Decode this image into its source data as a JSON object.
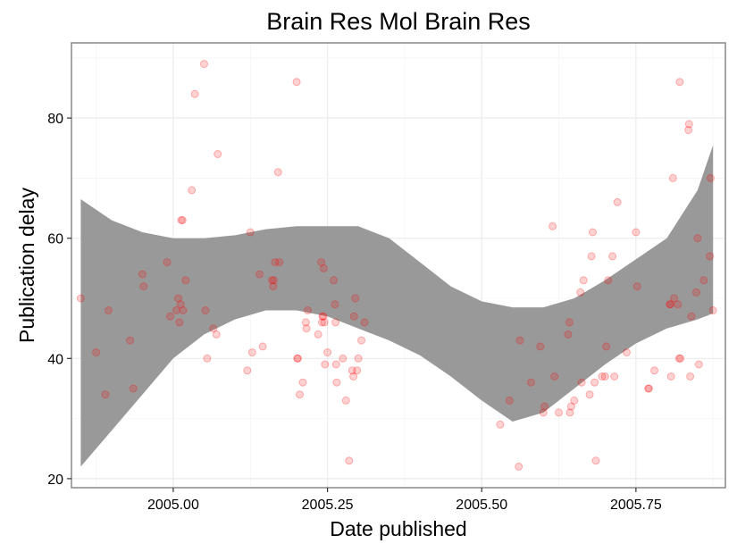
{
  "chart_data": {
    "type": "scatter",
    "title": "Brain Res Mol Brain Res",
    "xlabel": "Date published",
    "ylabel": "Publication delay",
    "xlim": [
      2004.835,
      2005.895
    ],
    "ylim": [
      18.5,
      92.5
    ],
    "xticks": [
      2005.0,
      2005.25,
      2005.5,
      2005.75
    ],
    "xtick_labels": [
      "2005.00",
      "2005.25",
      "2005.50",
      "2005.75"
    ],
    "yticks": [
      20,
      40,
      60,
      80
    ],
    "ytick_labels": [
      "20",
      "40",
      "60",
      "80"
    ],
    "grid": true,
    "point_color": "#ff0000",
    "band_color": "#999999",
    "series": [
      {
        "x": [
          2004.85,
          2004.875,
          2004.89,
          2004.895,
          2004.93,
          2004.935,
          2004.95,
          2004.952,
          2004.99,
          2004.995,
          2005.005,
          2005.008,
          2005.01,
          2005.012,
          2005.013,
          2005.015,
          2005.016,
          2005.02,
          2005.03,
          2005.035,
          2005.05,
          2005.052,
          2005.055,
          2005.065,
          2005.07,
          2005.072,
          2005.12,
          2005.125,
          2005.128,
          2005.14,
          2005.145,
          2005.16,
          2005.162,
          2005.163,
          2005.165,
          2005.17,
          2005.172,
          2005.2,
          2005.201,
          2005.202,
          2005.205,
          2005.21,
          2005.215,
          2005.216,
          2005.218,
          2005.235,
          2005.24,
          2005.241,
          2005.242,
          2005.243,
          2005.244,
          2005.245,
          2005.246,
          2005.25,
          2005.26,
          2005.262,
          2005.263,
          2005.264,
          2005.265,
          2005.275,
          2005.28,
          2005.285,
          2005.29,
          2005.292,
          2005.293,
          2005.295,
          2005.298,
          2005.3,
          2005.305,
          2005.31,
          2005.53,
          2005.545,
          2005.56,
          2005.562,
          2005.58,
          2005.595,
          2005.6,
          2005.602,
          2005.615,
          2005.618,
          2005.625,
          2005.64,
          2005.642,
          2005.643,
          2005.645,
          2005.65,
          2005.66,
          2005.662,
          2005.665,
          2005.675,
          2005.678,
          2005.68,
          2005.683,
          2005.685,
          2005.695,
          2005.7,
          2005.702,
          2005.705,
          2005.712,
          2005.715,
          2005.72,
          2005.735,
          2005.75,
          2005.752,
          2005.77,
          2005.771,
          2005.78,
          2005.805,
          2005.806,
          2005.807,
          2005.81,
          2005.812,
          2005.818,
          2005.82,
          2005.821,
          2005.822,
          2005.835,
          2005.836,
          2005.838,
          2005.84,
          2005.848,
          2005.85,
          2005.852,
          2005.86,
          2005.87,
          2005.871,
          2005.875
        ],
        "y": [
          50,
          41,
          34,
          48,
          43,
          35,
          54,
          52,
          56,
          47,
          48,
          50,
          46,
          49,
          63,
          63,
          48,
          53,
          68,
          84,
          89,
          48,
          40,
          45,
          44,
          74,
          38,
          61,
          41,
          54,
          42,
          53,
          52,
          53,
          56,
          71,
          56,
          86,
          40,
          40,
          34,
          36,
          46,
          45,
          48,
          44,
          56,
          46,
          47,
          47,
          55,
          46,
          39,
          41,
          53,
          49,
          46,
          39,
          36,
          40,
          33,
          23,
          38,
          37,
          47,
          50,
          38,
          40,
          43,
          46,
          29,
          33,
          22,
          43,
          36,
          42,
          31,
          32,
          62,
          37,
          31,
          44,
          46,
          31,
          32,
          33,
          51,
          36,
          53,
          34,
          57,
          61,
          36,
          23,
          37,
          37,
          42,
          53,
          57,
          37,
          66,
          41,
          61,
          52,
          35,
          35,
          38,
          49,
          49,
          37,
          70,
          50,
          49,
          40,
          86,
          40,
          78,
          79,
          37,
          47,
          51,
          60,
          39,
          53,
          57,
          70,
          48
        ]
      }
    ],
    "band": {
      "x": [
        2004.85,
        2004.9,
        2004.95,
        2005.0,
        2005.05,
        2005.1,
        2005.15,
        2005.2,
        2005.25,
        2005.3,
        2005.35,
        2005.4,
        2005.45,
        2005.5,
        2005.55,
        2005.6,
        2005.65,
        2005.7,
        2005.75,
        2005.8,
        2005.85,
        2005.875
      ],
      "lower": [
        22,
        28,
        34,
        40,
        44,
        46.5,
        48,
        48,
        47,
        45,
        43,
        40.5,
        37,
        33,
        29.5,
        31,
        35,
        39,
        42.5,
        45,
        46.5,
        47.5
      ],
      "upper": [
        66.5,
        63,
        61,
        60,
        60,
        60.5,
        61.5,
        62,
        62,
        62,
        60,
        56,
        52,
        49.5,
        48.5,
        48.5,
        50,
        53,
        56.5,
        60,
        68,
        75.5
      ]
    }
  }
}
